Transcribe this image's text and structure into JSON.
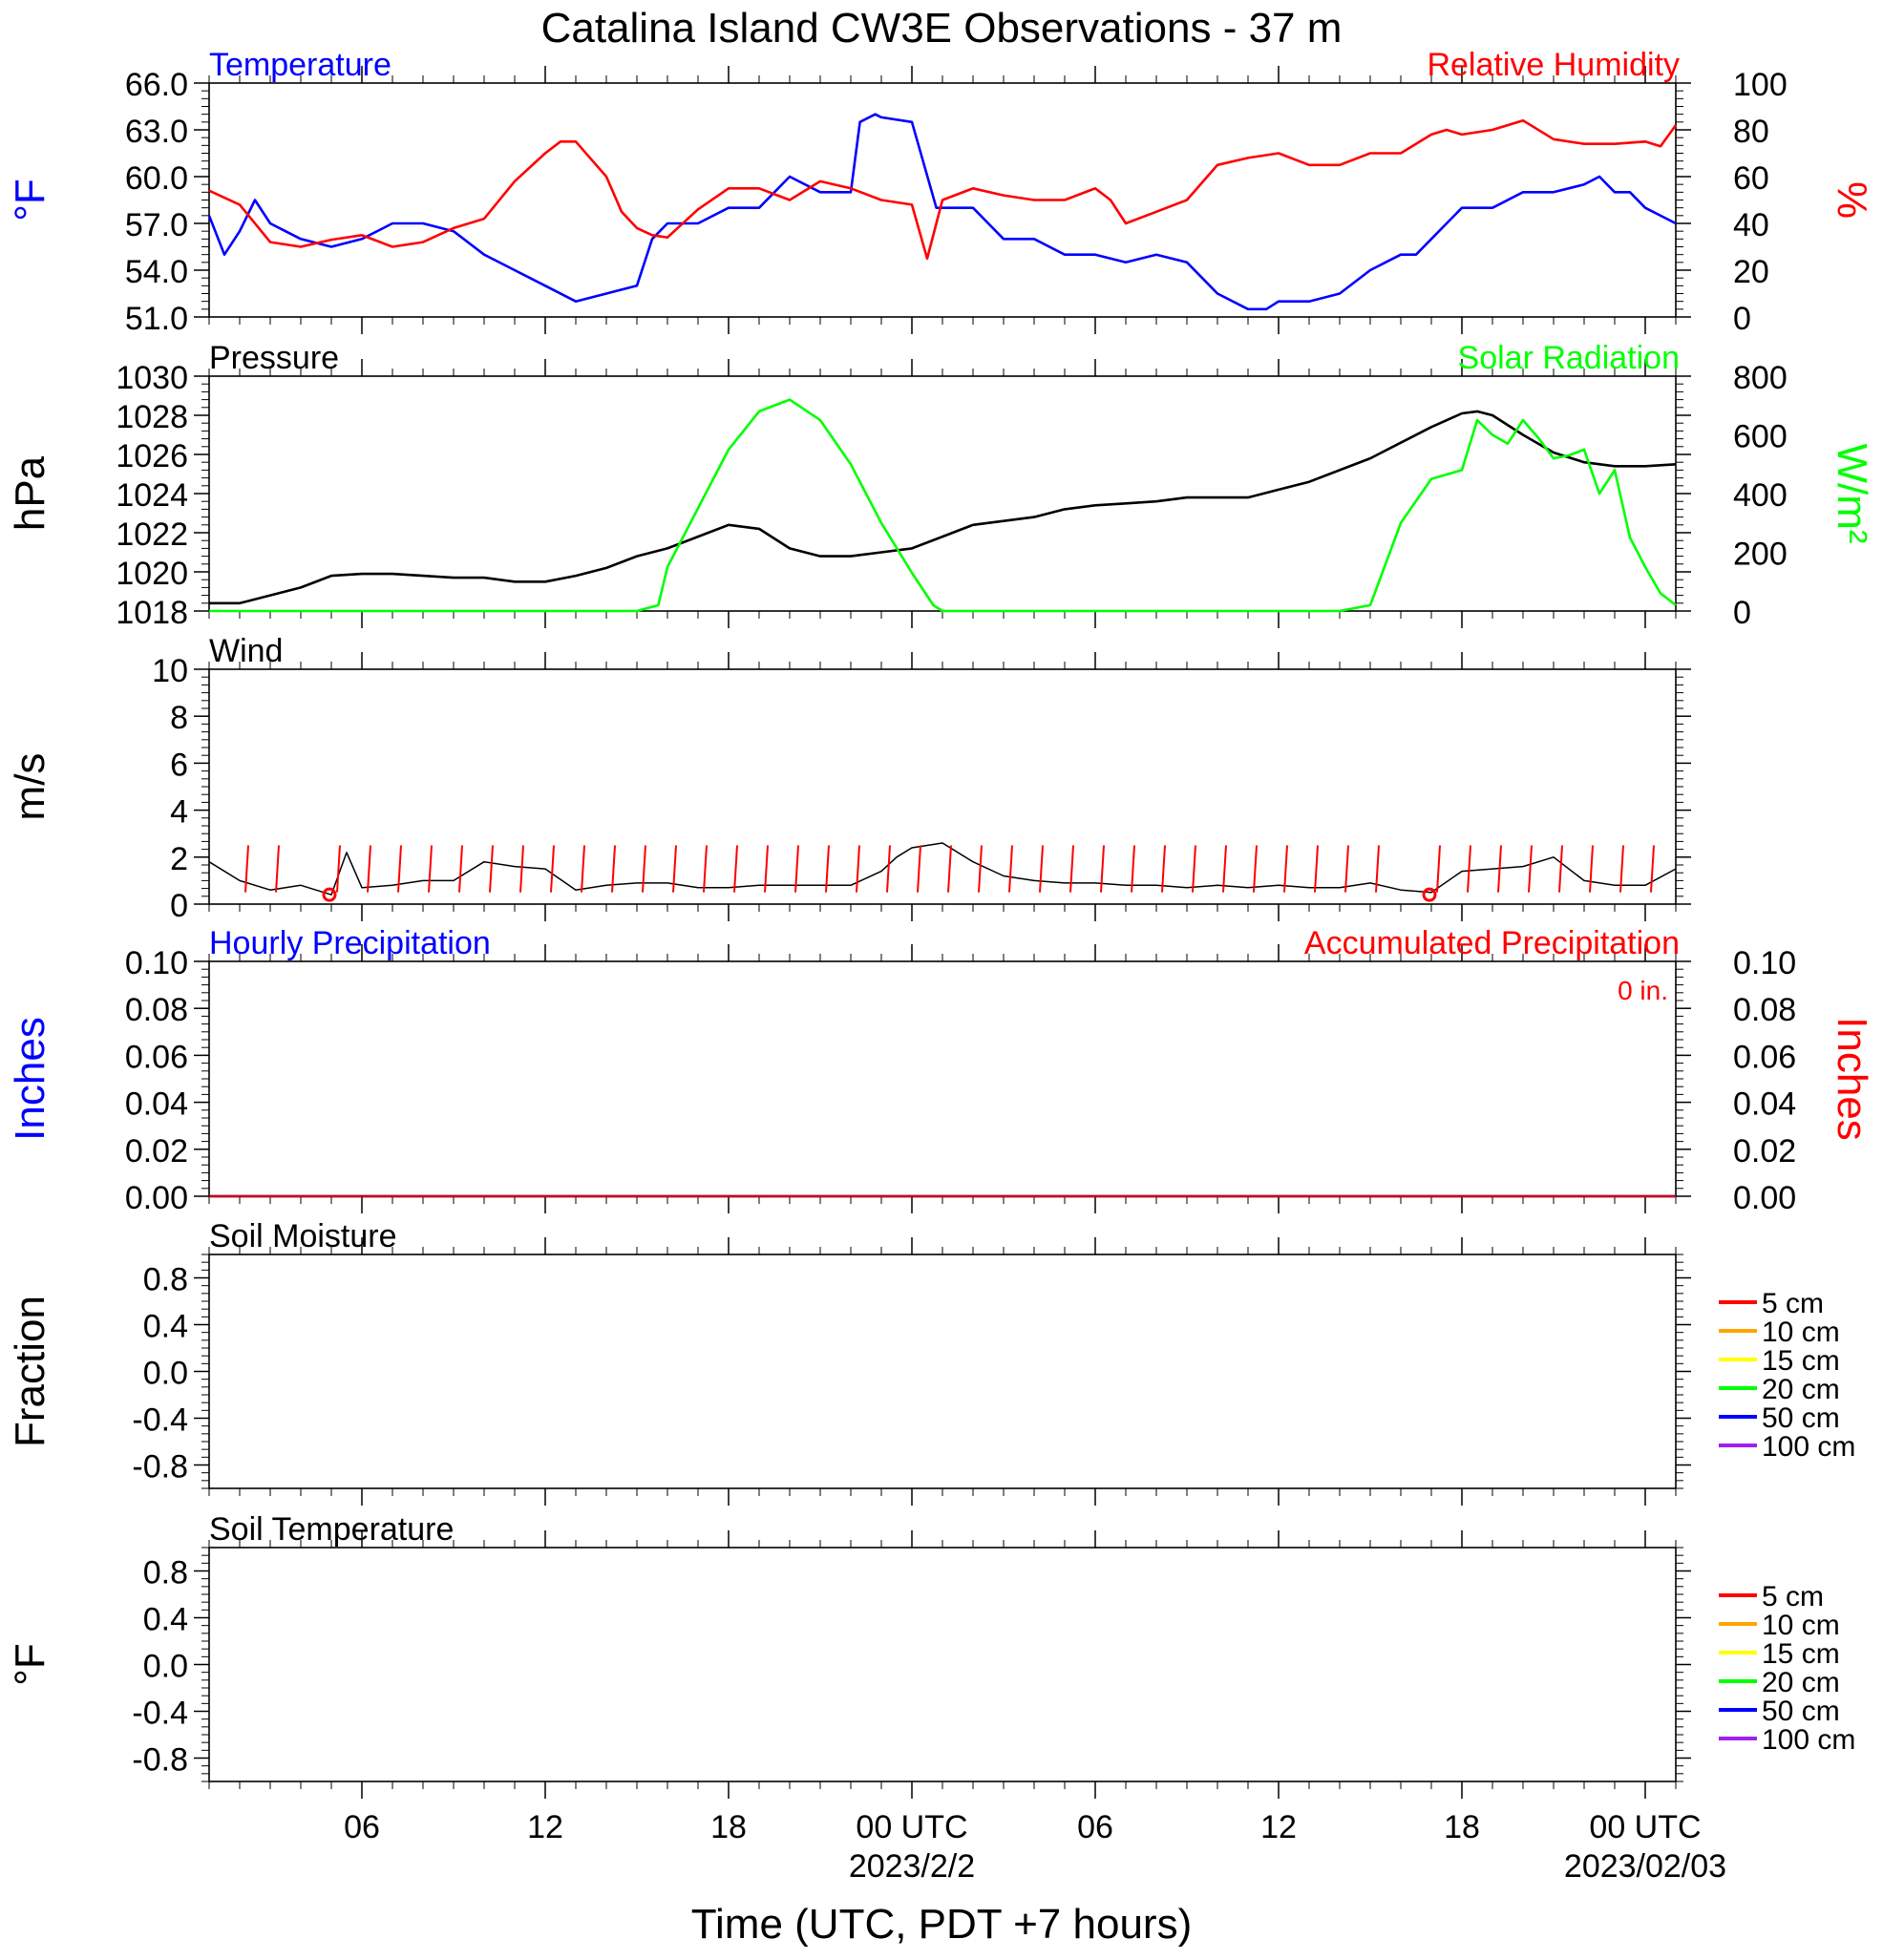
{
  "title": "Catalina Island CW3E Observations - 37 m",
  "x_axis": {
    "label": "Time (UTC, PDT +7 hours)",
    "ticks": [
      {
        "hour": 6,
        "label": "06",
        "date": ""
      },
      {
        "hour": 12,
        "label": "12",
        "date": ""
      },
      {
        "hour": 18,
        "label": "18",
        "date": ""
      },
      {
        "hour": 24,
        "label": "00 UTC",
        "date": "2023/2/2"
      },
      {
        "hour": 30,
        "label": "06",
        "date": ""
      },
      {
        "hour": 36,
        "label": "12",
        "date": ""
      },
      {
        "hour": 42,
        "label": "18",
        "date": ""
      },
      {
        "hour": 48,
        "label": "00 UTC",
        "date": "2023/02/03"
      }
    ],
    "hour_range": [
      1,
      49
    ]
  },
  "chart_data": [
    {
      "type": "line",
      "panel": "temperature-humidity",
      "title_left": "Temperature",
      "title_right": "Relative Humidity",
      "ylabel_left": "°F",
      "ylabel_right": "%",
      "ylim_left": [
        51,
        66
      ],
      "yticks_left": [
        "66.0",
        "63.0",
        "60.0",
        "57.0",
        "54.0",
        "51.0"
      ],
      "ylim_right": [
        0,
        100
      ],
      "yticks_right": [
        "100",
        "80",
        "60",
        "40",
        "20",
        "0"
      ],
      "color_left": "#0000ff",
      "color_right": "#ff0000",
      "series": [
        {
          "name": "Temperature",
          "axis": "left",
          "color": "#0000ff",
          "x": [
            1,
            1.5,
            2,
            2.5,
            3,
            3.5,
            4,
            5,
            6,
            7,
            8,
            9,
            10,
            11,
            12,
            13,
            14,
            15,
            15.5,
            16,
            17,
            18,
            19,
            20,
            21,
            22,
            22.3,
            22.8,
            23,
            24,
            24.8,
            25,
            26,
            27,
            28,
            29,
            30,
            31,
            32,
            33,
            34,
            35,
            35.6,
            36,
            37,
            38,
            39,
            40,
            40.5,
            41,
            42,
            43,
            44,
            45,
            46,
            46.5,
            47,
            47.5,
            48,
            49
          ],
          "y": [
            57.5,
            55,
            56.5,
            58.5,
            57,
            56.5,
            56,
            55.5,
            56,
            57,
            57,
            56.5,
            55,
            54,
            53,
            52,
            52.5,
            53,
            56,
            57,
            57,
            58,
            58,
            60,
            59,
            59,
            63.5,
            64,
            63.8,
            63.5,
            58,
            58,
            58,
            56,
            56,
            55,
            55,
            54.5,
            55,
            54.5,
            52.5,
            51.5,
            51.5,
            52,
            52,
            52.5,
            54,
            55,
            55,
            56,
            58,
            58,
            59,
            59,
            59.5,
            60,
            59,
            59,
            58,
            57
          ]
        },
        {
          "name": "Relative Humidity",
          "axis": "right",
          "color": "#ff0000",
          "x": [
            1,
            2,
            3,
            4,
            5,
            6,
            7,
            8,
            9,
            10,
            11,
            12,
            12.5,
            13,
            14,
            14.5,
            15,
            15.5,
            16,
            17,
            18,
            19,
            20,
            21,
            22,
            23,
            24,
            24.5,
            25,
            26,
            27,
            28,
            29,
            30,
            30.5,
            31,
            32,
            33,
            34,
            35,
            36,
            37,
            38,
            39,
            40,
            41,
            41.5,
            42,
            43,
            44,
            45,
            46,
            47,
            48,
            48.5,
            49
          ],
          "y": [
            54,
            48,
            32,
            30,
            33,
            35,
            30,
            32,
            38,
            42,
            58,
            70,
            75,
            75,
            60,
            45,
            38,
            35,
            34,
            46,
            55,
            55,
            50,
            58,
            55,
            50,
            48,
            25,
            50,
            55,
            52,
            50,
            50,
            55,
            50,
            40,
            45,
            50,
            65,
            68,
            70,
            65,
            65,
            70,
            70,
            78,
            80,
            78,
            80,
            84,
            76,
            74,
            74,
            75,
            73,
            82
          ]
        }
      ]
    },
    {
      "type": "line",
      "panel": "pressure-solar",
      "title_left": "Pressure",
      "title_right": "Solar Radiation",
      "ylabel_left": "hPa",
      "ylabel_right": "W/m²",
      "ylim_left": [
        1018,
        1030
      ],
      "yticks_left": [
        "1030",
        "1028",
        "1026",
        "1024",
        "1022",
        "1020",
        "1018"
      ],
      "ylim_right": [
        0,
        800
      ],
      "yticks_right": [
        "800",
        "600",
        "400",
        "200",
        "0"
      ],
      "color_left": "#000000",
      "color_right": "#00ff00",
      "series": [
        {
          "name": "Pressure",
          "axis": "left",
          "color": "#000000",
          "x": [
            1,
            2,
            3,
            4,
            5,
            6,
            7,
            8,
            9,
            10,
            11,
            12,
            13,
            14,
            15,
            16,
            17,
            18,
            19,
            20,
            21,
            22,
            23,
            24,
            25,
            26,
            27,
            28,
            29,
            30,
            31,
            32,
            33,
            34,
            35,
            36,
            37,
            38,
            39,
            40,
            41,
            42,
            42.5,
            43,
            44,
            45,
            46,
            47,
            48,
            49
          ],
          "y": [
            1018.4,
            1018.4,
            1018.8,
            1019.2,
            1019.8,
            1019.9,
            1019.9,
            1019.8,
            1019.7,
            1019.7,
            1019.5,
            1019.5,
            1019.8,
            1020.2,
            1020.8,
            1021.2,
            1021.8,
            1022.4,
            1022.2,
            1021.2,
            1020.8,
            1020.8,
            1021,
            1021.2,
            1021.8,
            1022.4,
            1022.6,
            1022.8,
            1023.2,
            1023.4,
            1023.5,
            1023.6,
            1023.8,
            1023.8,
            1023.8,
            1024.2,
            1024.6,
            1025.2,
            1025.8,
            1026.6,
            1027.4,
            1028.1,
            1028.2,
            1028,
            1027,
            1026.1,
            1025.6,
            1025.4,
            1025.4,
            1025.5
          ]
        },
        {
          "name": "Solar Radiation",
          "axis": "right",
          "color": "#00ff00",
          "x": [
            1,
            15,
            15.7,
            16,
            17,
            18,
            19,
            20,
            21,
            22,
            23,
            24,
            24.7,
            25,
            26,
            30,
            35,
            37,
            38,
            39,
            40,
            41,
            42,
            42.5,
            43,
            43.5,
            44,
            44.5,
            45,
            45.5,
            46,
            46.5,
            47,
            47.5,
            48,
            48.5,
            49
          ],
          "y": [
            0,
            0,
            20,
            150,
            350,
            550,
            680,
            720,
            650,
            500,
            300,
            130,
            20,
            0,
            0,
            0,
            0,
            0,
            0,
            20,
            300,
            450,
            480,
            650,
            600,
            570,
            650,
            590,
            520,
            530,
            550,
            400,
            480,
            250,
            150,
            60,
            20
          ]
        }
      ]
    },
    {
      "type": "line",
      "panel": "wind",
      "title_left": "Wind",
      "ylabel_left": "m/s",
      "ylim_left": [
        0,
        10
      ],
      "yticks_left": [
        "10",
        "8",
        "6",
        "4",
        "2",
        "0"
      ],
      "series": [
        {
          "name": "Wind",
          "axis": "left",
          "color": "#000000",
          "x": [
            1,
            2,
            3,
            4,
            5,
            5.5,
            6,
            7,
            8,
            9,
            10,
            11,
            12,
            13,
            14,
            15,
            16,
            17,
            18,
            19,
            20,
            21,
            22,
            23,
            23.5,
            24,
            25,
            26,
            27,
            28,
            29,
            30,
            31,
            32,
            33,
            34,
            35,
            36,
            37,
            38,
            39,
            40,
            41,
            42,
            43,
            44,
            45,
            46,
            47,
            48,
            49
          ],
          "y": [
            1.8,
            1,
            0.6,
            0.8,
            0.4,
            2.2,
            0.7,
            0.8,
            1,
            1,
            1.8,
            1.6,
            1.5,
            0.6,
            0.8,
            0.9,
            0.9,
            0.7,
            0.7,
            0.8,
            0.8,
            0.8,
            0.8,
            1.4,
            2,
            2.4,
            2.6,
            1.8,
            1.2,
            1,
            0.9,
            0.9,
            0.8,
            0.8,
            0.7,
            0.8,
            0.7,
            0.8,
            0.7,
            0.7,
            0.9,
            0.6,
            0.5,
            1.4,
            1.5,
            1.6,
            2,
            1,
            0.8,
            0.8,
            1.5
          ]
        }
      ]
    },
    {
      "type": "line",
      "panel": "precipitation",
      "title_left": "Hourly Precipitation",
      "title_right": "Accumulated Precipitation",
      "annotation": "0 in.",
      "ylabel_left": "Inches",
      "ylabel_right": "Inches",
      "ylim_left": [
        0,
        0.1
      ],
      "yticks_left": [
        "0.10",
        "0.08",
        "0.06",
        "0.04",
        "0.02",
        "0.00"
      ],
      "ylim_right": [
        0,
        0.1
      ],
      "yticks_right": [
        "0.10",
        "0.08",
        "0.06",
        "0.04",
        "0.02",
        "0.00"
      ],
      "color_left": "#0000ff",
      "color_right": "#ff0000",
      "series": [
        {
          "name": "Hourly Precipitation",
          "axis": "left",
          "color": "#0000ff",
          "x": [
            1,
            49
          ],
          "y": [
            0,
            0
          ]
        },
        {
          "name": "Accumulated Precipitation",
          "axis": "right",
          "color": "#cc0000",
          "x": [
            1,
            49
          ],
          "y": [
            0,
            0
          ]
        }
      ]
    },
    {
      "type": "line",
      "panel": "soil-moisture",
      "title_left": "Soil Moisture",
      "ylabel_left": "Fraction",
      "ylim_left": [
        -1,
        1
      ],
      "yticks_left": [
        "0.8",
        "0.4",
        "0.0",
        "-0.4",
        "-0.8"
      ],
      "legend": [
        {
          "label": "5 cm",
          "color": "#ff0000"
        },
        {
          "label": "10 cm",
          "color": "#ffa500"
        },
        {
          "label": "15 cm",
          "color": "#ffff00"
        },
        {
          "label": "20 cm",
          "color": "#00ff00"
        },
        {
          "label": "50 cm",
          "color": "#0000ff"
        },
        {
          "label": "100 cm",
          "color": "#a020f0"
        }
      ],
      "series": []
    },
    {
      "type": "line",
      "panel": "soil-temperature",
      "title_left": "Soil Temperature",
      "ylabel_left": "°F",
      "ylim_left": [
        -1,
        1
      ],
      "yticks_left": [
        "0.8",
        "0.4",
        "0.0",
        "-0.4",
        "-0.8"
      ],
      "legend": [
        {
          "label": "5 cm",
          "color": "#ff0000"
        },
        {
          "label": "10 cm",
          "color": "#ffa500"
        },
        {
          "label": "15 cm",
          "color": "#ffff00"
        },
        {
          "label": "20 cm",
          "color": "#00ff00"
        },
        {
          "label": "50 cm",
          "color": "#0000ff"
        },
        {
          "label": "100 cm",
          "color": "#a020f0"
        }
      ],
      "series": []
    }
  ]
}
